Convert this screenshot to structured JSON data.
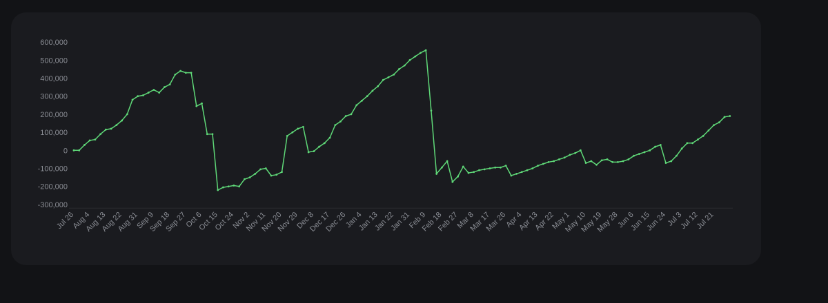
{
  "chart_data": {
    "type": "line",
    "categories": [
      "Jul 26",
      null,
      null,
      "Aug 4",
      null,
      null,
      "Aug 13",
      null,
      null,
      "Aug 22",
      null,
      null,
      "Aug 31",
      null,
      null,
      "Sep 9",
      null,
      null,
      "Sep 18",
      null,
      null,
      "Sep 27",
      null,
      null,
      "Oct 6",
      null,
      null,
      "Oct 15",
      null,
      null,
      "Oct 24",
      null,
      null,
      "Nov 2",
      null,
      null,
      "Nov 11",
      null,
      null,
      "Nov 20",
      null,
      null,
      "Nov 29",
      null,
      null,
      "Dec 8",
      null,
      null,
      "Dec 17",
      null,
      null,
      "Dec 26",
      null,
      null,
      "Jan 4",
      null,
      null,
      "Jan 13",
      null,
      null,
      "Jan 22",
      null,
      null,
      "Jan 31",
      null,
      null,
      "Feb 9",
      null,
      null,
      "Feb 18",
      null,
      null,
      "Feb 27",
      null,
      null,
      "Mar 8",
      null,
      null,
      "Mar 17",
      null,
      null,
      "Mar 26",
      null,
      null,
      "Apr 4",
      null,
      null,
      "Apr 13",
      null,
      null,
      "Apr 22",
      null,
      null,
      "May 1",
      null,
      null,
      "May 10",
      null,
      null,
      "May 19",
      null,
      null,
      "May 28",
      null,
      null,
      "Jun 6",
      null,
      null,
      "Jun 15",
      null,
      null,
      "Jun 24",
      null,
      null,
      "Jul 3",
      null,
      null,
      "Jul 12",
      null,
      null,
      "Jul 21",
      null,
      null,
      null
    ],
    "values": [
      0,
      0,
      30000,
      55000,
      60000,
      90000,
      115000,
      120000,
      140000,
      165000,
      200000,
      280000,
      300000,
      305000,
      320000,
      335000,
      320000,
      350000,
      365000,
      420000,
      440000,
      430000,
      430000,
      245000,
      260000,
      90000,
      90000,
      -220000,
      -205000,
      -200000,
      -195000,
      -200000,
      -160000,
      -150000,
      -130000,
      -105000,
      -100000,
      -140000,
      -135000,
      -120000,
      80000,
      100000,
      120000,
      130000,
      -10000,
      -5000,
      20000,
      40000,
      70000,
      140000,
      160000,
      190000,
      200000,
      250000,
      275000,
      300000,
      330000,
      355000,
      390000,
      405000,
      420000,
      450000,
      470000,
      500000,
      520000,
      540000,
      555000,
      220000,
      -130000,
      -95000,
      -60000,
      -175000,
      -145000,
      -90000,
      -125000,
      -120000,
      -110000,
      -105000,
      -100000,
      -95000,
      -95000,
      -85000,
      -140000,
      -130000,
      -120000,
      -110000,
      -100000,
      -85000,
      -75000,
      -65000,
      -60000,
      -50000,
      -40000,
      -25000,
      -15000,
      0,
      -70000,
      -60000,
      -80000,
      -55000,
      -50000,
      -65000,
      -65000,
      -60000,
      -50000,
      -30000,
      -20000,
      -10000,
      0,
      20000,
      30000,
      -70000,
      -60000,
      -30000,
      10000,
      40000,
      40000,
      60000,
      80000,
      110000,
      140000,
      155000,
      185000,
      190000
    ],
    "color": "#5fd978",
    "ylim": [
      -320000,
      620000
    ],
    "yticks": [
      {
        "value": -300000,
        "label": "-300,000"
      },
      {
        "value": -200000,
        "label": "-200,000"
      },
      {
        "value": -100000,
        "label": "-100,000"
      },
      0,
      {
        "value": 100000,
        "label": "100,000"
      },
      {
        "value": 200000,
        "label": "200,000"
      },
      {
        "value": 300000,
        "label": "300,000"
      },
      {
        "value": 400000,
        "label": "400,000"
      },
      {
        "value": 500000,
        "label": "500,000"
      },
      {
        "value": 600000,
        "label": "600,000"
      }
    ],
    "grid": false
  }
}
